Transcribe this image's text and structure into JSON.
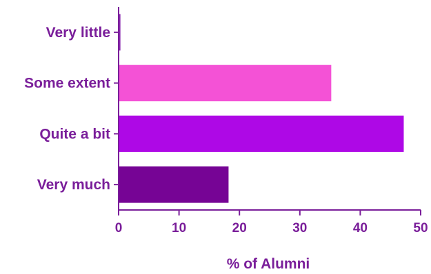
{
  "chart_data": {
    "type": "bar",
    "orientation": "horizontal",
    "categories": [
      "Very little",
      "Some extent",
      "Quite a bit",
      "Very much"
    ],
    "values": [
      0.3,
      35.2,
      47.2,
      18.2
    ],
    "xlabel": "% of Alumni",
    "xlim": [
      0,
      50
    ],
    "xticks": [
      "0",
      "10",
      "20",
      "30",
      "40",
      "50"
    ],
    "grid": false,
    "legend": "none",
    "colors": [
      "#8a2bb0",
      "#f452d6",
      "#ae08e6",
      "#760495"
    ],
    "axis_color": "#7a1e9a"
  }
}
